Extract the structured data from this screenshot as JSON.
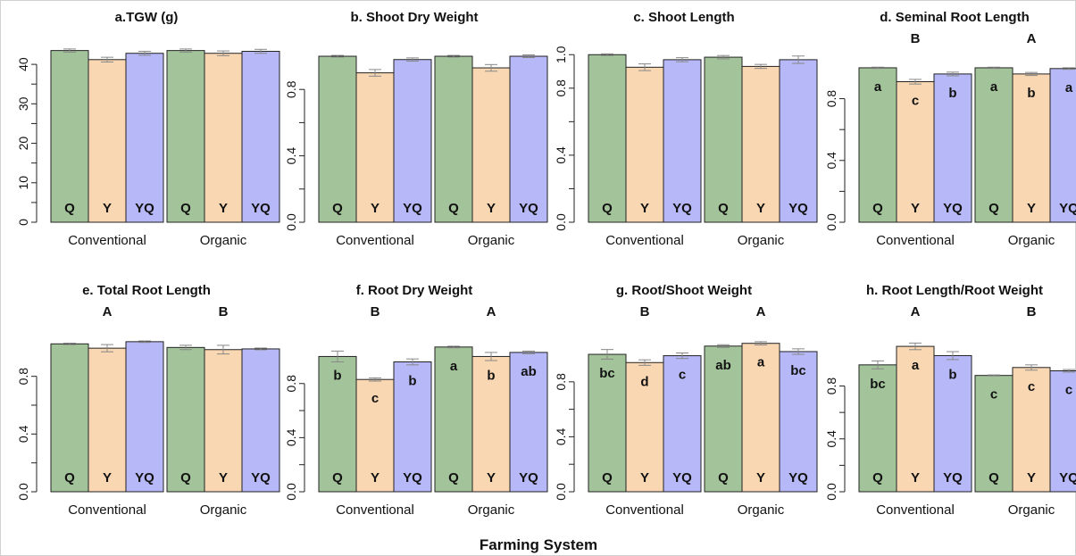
{
  "figure": {
    "xlabel": "Farming System",
    "colors": {
      "Q": "#a3c49a",
      "Y": "#f9d7b2",
      "YQ": "#b7b8f7",
      "axis": "#222222",
      "error": "#888888"
    }
  },
  "chart_data": [
    {
      "type": "bar",
      "title": "a.TGW (g)",
      "categories": [
        "Conventional",
        "Organic"
      ],
      "series_labels": [
        "Q",
        "Y",
        "YQ"
      ],
      "series": [
        {
          "values": [
            43.5,
            43.5
          ]
        },
        {
          "values": [
            41.2,
            42.8
          ]
        },
        {
          "values": [
            42.8,
            43.3
          ]
        }
      ],
      "errors": [
        [
          0.4,
          0.4
        ],
        [
          0.6,
          0.6
        ],
        [
          0.5,
          0.5
        ]
      ],
      "ylim": [
        0,
        45
      ],
      "yticks": [
        "0",
        "10",
        "20",
        "30",
        "40"
      ],
      "group_letters": [
        "",
        ""
      ],
      "bar_letters": [
        [
          "",
          "",
          ""
        ],
        [
          "",
          "",
          ""
        ]
      ]
    },
    {
      "type": "bar",
      "title": "b. Shoot Dry Weight",
      "categories": [
        "Conventional",
        "Organic"
      ],
      "series_labels": [
        "Q",
        "Y",
        "YQ"
      ],
      "series": [
        {
          "values": [
            1.0,
            1.0
          ]
        },
        {
          "values": [
            0.9,
            0.93
          ]
        },
        {
          "values": [
            0.98,
            1.0
          ]
        }
      ],
      "errors": [
        [
          0.005,
          0.005
        ],
        [
          0.02,
          0.02
        ],
        [
          0.01,
          0.008
        ]
      ],
      "ylim": [
        0,
        1.07
      ],
      "yticks": [
        "0.0",
        "0.4",
        "0.8"
      ],
      "group_letters": [
        "",
        ""
      ],
      "bar_letters": [
        [
          "",
          "",
          ""
        ],
        [
          "",
          "",
          ""
        ]
      ]
    },
    {
      "type": "bar",
      "title": "c. Shoot Length",
      "categories": [
        "Conventional",
        "Organic"
      ],
      "series_labels": [
        "Q",
        "Y",
        "YQ"
      ],
      "series": [
        {
          "values": [
            1.0,
            0.985
          ]
        },
        {
          "values": [
            0.925,
            0.93
          ]
        },
        {
          "values": [
            0.97,
            0.97
          ]
        }
      ],
      "errors": [
        [
          0.005,
          0.01
        ],
        [
          0.02,
          0.012
        ],
        [
          0.012,
          0.022
        ]
      ],
      "ylim": [
        0,
        1.06
      ],
      "yticks": [
        "0.0",
        "0.4",
        "0.8",
        "1.0"
      ],
      "group_letters": [
        "",
        ""
      ],
      "bar_letters": [
        [
          "",
          "",
          ""
        ],
        [
          "",
          "",
          ""
        ]
      ]
    },
    {
      "type": "bar",
      "title": "d. Seminal Root Length",
      "categories": [
        "Conventional",
        "Organic"
      ],
      "series_labels": [
        "Q",
        "Y",
        "YQ"
      ],
      "series": [
        {
          "values": [
            1.0,
            1.0
          ]
        },
        {
          "values": [
            0.91,
            0.96
          ]
        },
        {
          "values": [
            0.96,
            0.995
          ]
        }
      ],
      "errors": [
        [
          0.004,
          0.004
        ],
        [
          0.015,
          0.01
        ],
        [
          0.012,
          0.005
        ]
      ],
      "ylim": [
        0,
        1.15
      ],
      "yticks": [
        "0.0",
        "0.4",
        "0.8"
      ],
      "group_letters": [
        "B",
        "A"
      ],
      "bar_letters": [
        [
          "a",
          "c",
          "b"
        ],
        [
          "a",
          "b",
          "a"
        ]
      ]
    },
    {
      "type": "bar",
      "title": "e. Total Root Length",
      "categories": [
        "Conventional",
        "Organic"
      ],
      "series_labels": [
        "Q",
        "Y",
        "YQ"
      ],
      "series": [
        {
          "values": [
            1.025,
            1.0
          ]
        },
        {
          "values": [
            0.995,
            0.985
          ]
        },
        {
          "values": [
            1.04,
            0.99
          ]
        }
      ],
      "errors": [
        [
          0.005,
          0.015
        ],
        [
          0.025,
          0.03
        ],
        [
          0.005,
          0.006
        ]
      ],
      "ylim": [
        0,
        1.2
      ],
      "yticks": [
        "0.0",
        "0.4",
        "0.8"
      ],
      "group_letters": [
        "A",
        "B"
      ],
      "bar_letters": [
        [
          "",
          "",
          ""
        ],
        [
          "",
          "",
          ""
        ]
      ]
    },
    {
      "type": "bar",
      "title": "f. Root Dry Weight",
      "categories": [
        "Conventional",
        "Organic"
      ],
      "series_labels": [
        "Q",
        "Y",
        "YQ"
      ],
      "series": [
        {
          "values": [
            1.0,
            1.07
          ]
        },
        {
          "values": [
            0.83,
            1.0
          ]
        },
        {
          "values": [
            0.96,
            1.03
          ]
        }
      ],
      "errors": [
        [
          0.04,
          0.006
        ],
        [
          0.012,
          0.03
        ],
        [
          0.022,
          0.01
        ]
      ],
      "ylim": [
        0,
        1.28
      ],
      "yticks": [
        "0.0",
        "0.4",
        "0.8"
      ],
      "group_letters": [
        "B",
        "A"
      ],
      "bar_letters": [
        [
          "b",
          "c",
          "b"
        ],
        [
          "a",
          "b",
          "ab"
        ]
      ]
    },
    {
      "type": "bar",
      "title": "g. Root/Shoot Weight",
      "categories": [
        "Conventional",
        "Organic"
      ],
      "series_labels": [
        "Q",
        "Y",
        "YQ"
      ],
      "series": [
        {
          "values": [
            1.0,
            1.06
          ]
        },
        {
          "values": [
            0.94,
            1.08
          ]
        },
        {
          "values": [
            0.99,
            1.02
          ]
        }
      ],
      "errors": [
        [
          0.035,
          0.01
        ],
        [
          0.02,
          0.012
        ],
        [
          0.02,
          0.02
        ]
      ],
      "ylim": [
        0,
        1.26
      ],
      "yticks": [
        "0.0",
        "0.4",
        "0.8"
      ],
      "group_letters": [
        "B",
        "A"
      ],
      "bar_letters": [
        [
          "bc",
          "d",
          "c"
        ],
        [
          "ab",
          "a",
          "bc"
        ]
      ]
    },
    {
      "type": "bar",
      "title": "h. Root Length/Root Weight",
      "categories": [
        "Conventional",
        "Organic"
      ],
      "series_labels": [
        "Q",
        "Y",
        "YQ"
      ],
      "series": [
        {
          "values": [
            0.96,
            0.88
          ]
        },
        {
          "values": [
            1.1,
            0.94
          ]
        },
        {
          "values": [
            1.03,
            0.915
          ]
        }
      ],
      "errors": [
        [
          0.03,
          0.004
        ],
        [
          0.025,
          0.02
        ],
        [
          0.03,
          0.01
        ]
      ],
      "ylim": [
        0,
        1.31
      ],
      "yticks": [
        "0.0",
        "0.4",
        "0.8"
      ],
      "group_letters": [
        "A",
        "B"
      ],
      "bar_letters": [
        [
          "bc",
          "a",
          "b"
        ],
        [
          "c",
          "c",
          "c"
        ]
      ]
    }
  ]
}
